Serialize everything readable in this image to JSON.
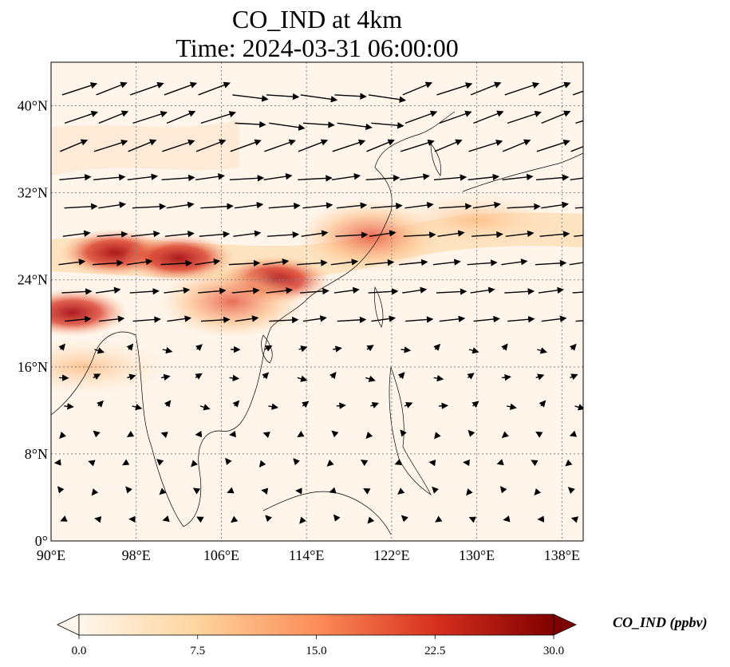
{
  "title": {
    "line1": "CO_IND at 4km",
    "line2": "Time: 2024-03-31 06:00:00"
  },
  "map": {
    "variable": "CO_IND",
    "level": "4km",
    "time": "2024-03-31 06:00:00",
    "lon_range": [
      90,
      140
    ],
    "lat_range": [
      0,
      44
    ],
    "lon_ticks": [
      "90°E",
      "98°E",
      "106°E",
      "114°E",
      "122°E",
      "130°E",
      "138°E"
    ],
    "lat_ticks": [
      "0°",
      "8°N",
      "16°N",
      "24°N",
      "32°N",
      "40°N"
    ],
    "gridlines": "dotted",
    "colors": {
      "low": "#fff5eb",
      "mid": "#fdae6b",
      "high": "#7f0000",
      "coastline": "#000000",
      "wind_vector": "#000000"
    },
    "plumes": [
      {
        "lon": 92,
        "lat": 21,
        "level": "high"
      },
      {
        "lon": 96,
        "lat": 26.5,
        "level": "high"
      },
      {
        "lon": 102,
        "lat": 26,
        "level": "high"
      },
      {
        "lon": 111,
        "lat": 24,
        "level": "high"
      },
      {
        "lon": 107,
        "lat": 22,
        "level": "medium"
      },
      {
        "lon": 120,
        "lat": 28,
        "level": "medium"
      },
      {
        "lon": 130,
        "lat": 29.5,
        "level": "low"
      },
      {
        "lon": 93,
        "lat": 16,
        "level": "low"
      }
    ]
  },
  "colorbar": {
    "label": "CO_IND (ppbv)",
    "min": 0,
    "max": 30,
    "ticks": [
      "0.0",
      "7.5",
      "15.0",
      "22.5",
      "30.0"
    ],
    "colormap": "OrRd",
    "extend": "both"
  }
}
